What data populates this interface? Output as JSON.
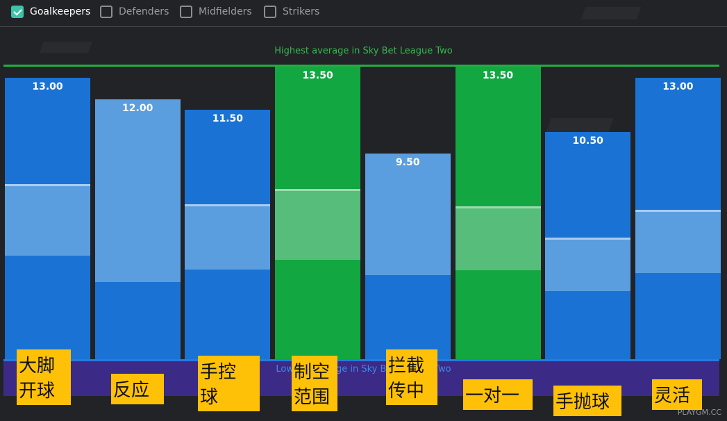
{
  "filters": [
    {
      "label": "Goalkeepers",
      "checked": true
    },
    {
      "label": "Defenders",
      "checked": false
    },
    {
      "label": "Midfielders",
      "checked": false
    },
    {
      "label": "Strikers",
      "checked": false
    }
  ],
  "reference": {
    "high_label": "Highest average in Sky Bet League Two",
    "low_label": "Lowest average in Sky Bet League Two"
  },
  "colors": {
    "blue": "#1a73d4",
    "light_blue": "#5b9ee0",
    "green": "#12a741",
    "light_green": "#56be7a",
    "grey": "#6a6a6d"
  },
  "chart_data": {
    "type": "bar",
    "scale_max": 13.5,
    "bars": [
      {
        "value": 13.0,
        "value_label": "13.00",
        "label_lines": [
          "大脚",
          "开球"
        ],
        "state": "normal"
      },
      {
        "value": 12.0,
        "value_label": "12.00",
        "label_lines": [
          "反应"
        ],
        "state": "below"
      },
      {
        "value": 11.5,
        "value_label": "11.50",
        "label_lines": [
          "手控",
          "球"
        ],
        "state": "normal"
      },
      {
        "value": 13.5,
        "value_label": "13.50",
        "label_lines": [
          "制空",
          "范围"
        ],
        "state": "max"
      },
      {
        "value": 9.5,
        "value_label": "9.50",
        "label_lines": [
          "拦截",
          "传中"
        ],
        "state": "below"
      },
      {
        "value": 13.5,
        "value_label": "13.50",
        "label_lines": [
          "一对一"
        ],
        "state": "max"
      },
      {
        "value": 10.5,
        "value_label": "10.50",
        "label_lines": [
          "手抛球"
        ],
        "state": "normal"
      },
      {
        "value": 13.0,
        "value_label": "13.00",
        "label_lines": [
          "灵活"
        ],
        "state": "normal"
      }
    ]
  },
  "watermark": "PLAYGM.CC"
}
